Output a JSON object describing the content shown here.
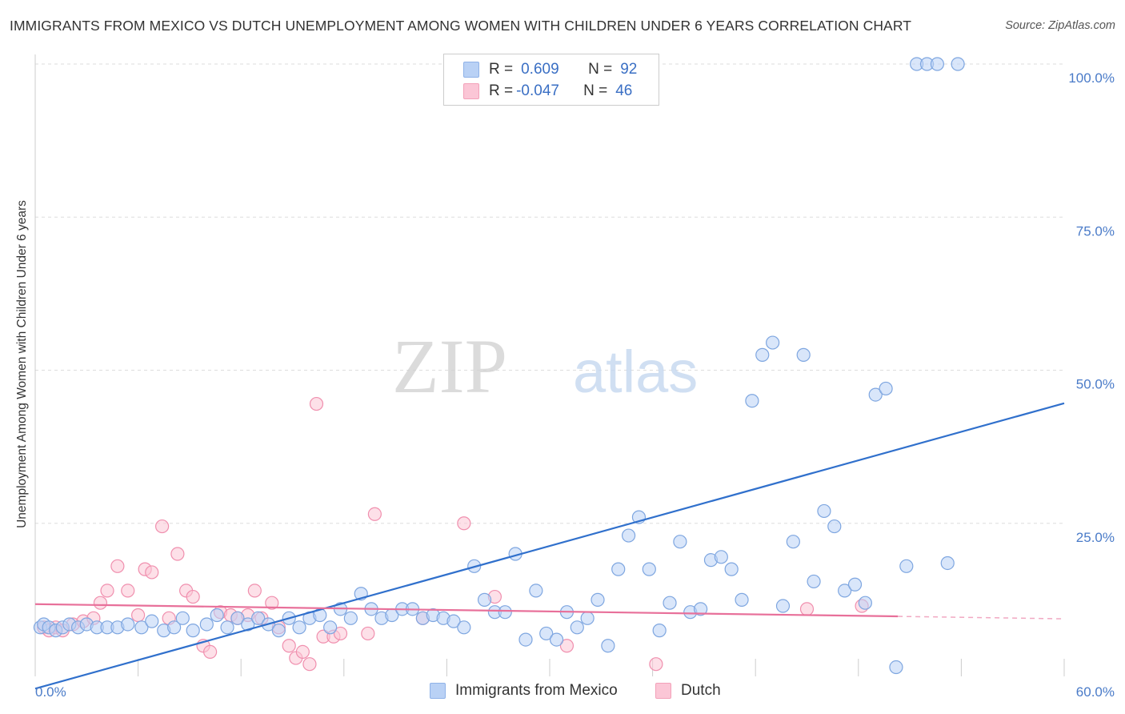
{
  "title": "IMMIGRANTS FROM MEXICO VS DUTCH UNEMPLOYMENT AMONG WOMEN WITH CHILDREN UNDER 6 YEARS CORRELATION CHART",
  "source": "Source: ZipAtlas.com",
  "watermark": {
    "zip": "ZIP",
    "atlas": "atlas"
  },
  "legend": {
    "rows": [
      {
        "r_label": "R =",
        "r_value": "0.609",
        "n_label": "N =",
        "n_value": "92"
      },
      {
        "r_label": "R =",
        "r_value": "-0.047",
        "n_label": "N =",
        "n_value": "46"
      }
    ]
  },
  "colors": {
    "blue_fill": "#b9d1f5",
    "blue_stroke": "#7ea6e0",
    "blue_line": "#3070cc",
    "pink_fill": "#fbc6d6",
    "pink_stroke": "#f08fae",
    "pink_line": "#e8709a",
    "grid": "#dddddd",
    "tick": "#4a7bc8"
  },
  "chart_data": {
    "type": "scatter",
    "xlabel": "",
    "ylabel": "Unemployment Among Women with Children Under 6 years",
    "xlim": [
      0,
      60
    ],
    "ylim": [
      0,
      100
    ],
    "x_tick_labels": [
      "0.0%",
      "60.0%"
    ],
    "y_tick_labels": [
      "100.0%",
      "75.0%",
      "50.0%",
      "25.0%"
    ],
    "y_ticks": [
      100,
      75,
      50,
      25
    ],
    "grid": true,
    "series": [
      {
        "name": "Immigrants from Mexico",
        "color": "blue",
        "trendline": {
          "x": [
            0,
            60
          ],
          "y": [
            -2.0,
            44.6
          ]
        },
        "points": [
          [
            0.3,
            8
          ],
          [
            0.5,
            8.5
          ],
          [
            0.8,
            8
          ],
          [
            1.2,
            7.5
          ],
          [
            1.6,
            8
          ],
          [
            2.0,
            8.5
          ],
          [
            2.5,
            8
          ],
          [
            3.0,
            8.5
          ],
          [
            3.6,
            8
          ],
          [
            4.2,
            8
          ],
          [
            4.8,
            8
          ],
          [
            5.4,
            8.5
          ],
          [
            6.2,
            8
          ],
          [
            6.8,
            9
          ],
          [
            7.5,
            7.5
          ],
          [
            8.1,
            8
          ],
          [
            8.6,
            9.5
          ],
          [
            9.2,
            7.5
          ],
          [
            10.0,
            8.5
          ],
          [
            10.6,
            10
          ],
          [
            11.2,
            8
          ],
          [
            11.8,
            9.5
          ],
          [
            12.4,
            8.5
          ],
          [
            13.0,
            9.5
          ],
          [
            13.6,
            8.5
          ],
          [
            14.2,
            7.5
          ],
          [
            14.8,
            9.5
          ],
          [
            15.4,
            8
          ],
          [
            16.0,
            9.5
          ],
          [
            16.6,
            10
          ],
          [
            17.2,
            8
          ],
          [
            17.8,
            11
          ],
          [
            18.4,
            9.5
          ],
          [
            19.0,
            13.5
          ],
          [
            19.6,
            11
          ],
          [
            20.2,
            9.5
          ],
          [
            20.8,
            10
          ],
          [
            21.4,
            11
          ],
          [
            22.0,
            11
          ],
          [
            22.6,
            9.5
          ],
          [
            23.2,
            10
          ],
          [
            23.8,
            9.5
          ],
          [
            24.4,
            9
          ],
          [
            25.0,
            8
          ],
          [
            25.6,
            18
          ],
          [
            26.2,
            12.5
          ],
          [
            26.8,
            10.5
          ],
          [
            27.4,
            10.5
          ],
          [
            28.0,
            20
          ],
          [
            28.6,
            6
          ],
          [
            29.2,
            14
          ],
          [
            29.8,
            7
          ],
          [
            30.4,
            6
          ],
          [
            31.0,
            10.5
          ],
          [
            31.6,
            8
          ],
          [
            32.2,
            9.5
          ],
          [
            32.8,
            12.5
          ],
          [
            33.4,
            5
          ],
          [
            34.0,
            17.5
          ],
          [
            34.6,
            23
          ],
          [
            35.2,
            26
          ],
          [
            35.8,
            17.5
          ],
          [
            36.4,
            7.5
          ],
          [
            37.0,
            12
          ],
          [
            37.6,
            22
          ],
          [
            38.2,
            10.5
          ],
          [
            38.8,
            11
          ],
          [
            39.4,
            19
          ],
          [
            40.0,
            19.5
          ],
          [
            40.6,
            17.5
          ],
          [
            41.2,
            12.5
          ],
          [
            41.8,
            45
          ],
          [
            42.4,
            52.5
          ],
          [
            43.0,
            54.5
          ],
          [
            43.6,
            11.5
          ],
          [
            44.2,
            22
          ],
          [
            44.8,
            52.5
          ],
          [
            45.4,
            15.5
          ],
          [
            46.0,
            27
          ],
          [
            46.6,
            24.5
          ],
          [
            47.2,
            14
          ],
          [
            47.8,
            15
          ],
          [
            48.4,
            12
          ],
          [
            49.0,
            46
          ],
          [
            49.6,
            47
          ],
          [
            50.2,
            1.5
          ],
          [
            50.8,
            18
          ],
          [
            51.4,
            100
          ],
          [
            52.0,
            100
          ],
          [
            52.6,
            100
          ],
          [
            53.2,
            18.5
          ],
          [
            53.8,
            100
          ]
        ]
      },
      {
        "name": "Dutch",
        "color": "pink",
        "trendline": {
          "x": [
            0,
            50.3
          ],
          "y": [
            11.8,
            9.8
          ]
        },
        "trendline_dashed": {
          "x": [
            50.3,
            60
          ],
          "y": [
            9.8,
            9.4
          ]
        },
        "points": [
          [
            0.5,
            8
          ],
          [
            0.8,
            7.5
          ],
          [
            1.2,
            8
          ],
          [
            1.6,
            7.5
          ],
          [
            2.2,
            8.5
          ],
          [
            2.8,
            9
          ],
          [
            3.4,
            9.5
          ],
          [
            3.8,
            12
          ],
          [
            4.2,
            14
          ],
          [
            4.8,
            18
          ],
          [
            5.4,
            14
          ],
          [
            6.0,
            10
          ],
          [
            6.4,
            17.5
          ],
          [
            6.8,
            17
          ],
          [
            7.4,
            24.5
          ],
          [
            7.8,
            9.5
          ],
          [
            8.3,
            20
          ],
          [
            8.8,
            14
          ],
          [
            9.2,
            13
          ],
          [
            9.8,
            5
          ],
          [
            10.2,
            4
          ],
          [
            10.8,
            10.5
          ],
          [
            11.4,
            10
          ],
          [
            11.8,
            9.5
          ],
          [
            12.4,
            10
          ],
          [
            12.8,
            14
          ],
          [
            13.2,
            9.5
          ],
          [
            13.8,
            12
          ],
          [
            14.2,
            8
          ],
          [
            14.8,
            5
          ],
          [
            15.2,
            3
          ],
          [
            15.6,
            4
          ],
          [
            16.0,
            2
          ],
          [
            16.4,
            44.5
          ],
          [
            16.8,
            6.5
          ],
          [
            17.4,
            6.5
          ],
          [
            17.8,
            7
          ],
          [
            19.4,
            7
          ],
          [
            19.8,
            26.5
          ],
          [
            22.6,
            9.5
          ],
          [
            25.0,
            25
          ],
          [
            26.8,
            13
          ],
          [
            31.0,
            5
          ],
          [
            36.2,
            2
          ],
          [
            45.0,
            11
          ],
          [
            48.2,
            11.5
          ]
        ]
      }
    ]
  }
}
